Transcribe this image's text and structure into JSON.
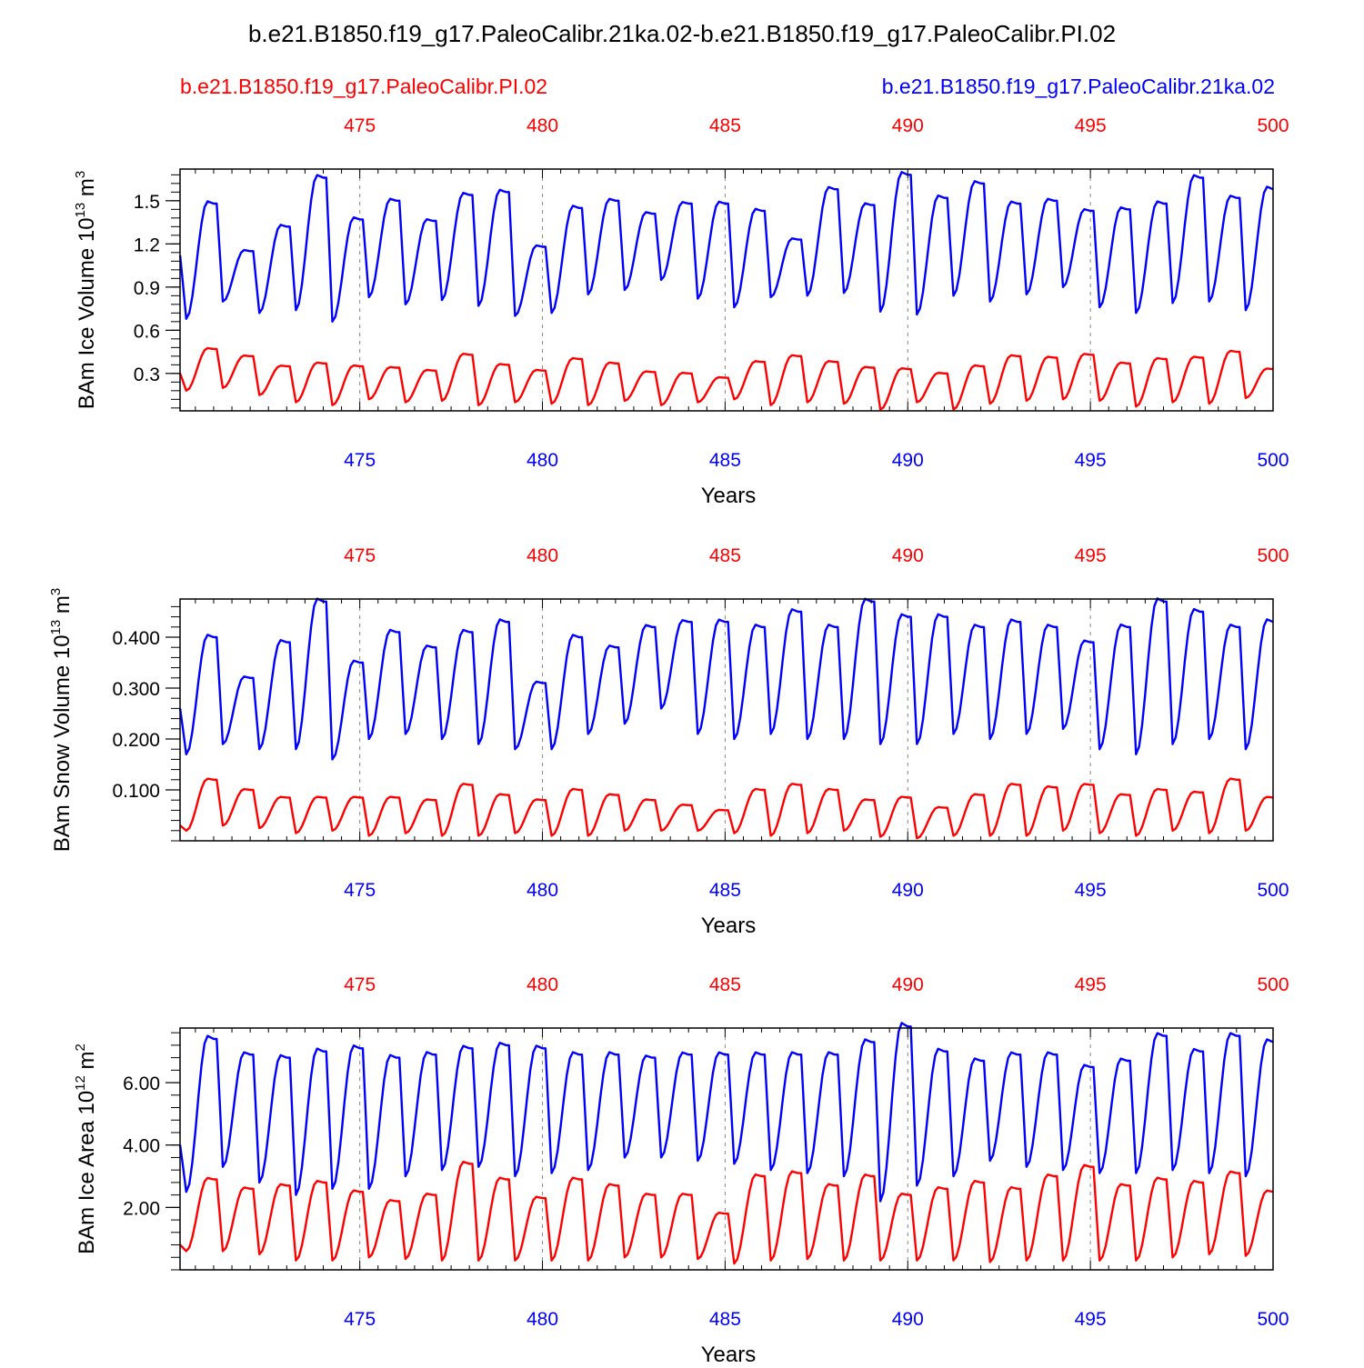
{
  "title": "b.e21.B1850.f19_g17.PaleoCalibr.21ka.02-b.e21.B1850.f19_g17.PaleoCalibr.PI.02",
  "legend": {
    "red_label": "b.e21.B1850.f19_g17.PaleoCalibr.PI.02",
    "blue_label": "b.e21.B1850.f19_g17.PaleoCalibr.21ka.02"
  },
  "colors": {
    "pi": "#ff0000",
    "lgm": "#0000ff",
    "axis": "#000000",
    "grid": "#888888"
  },
  "chart_data": [
    {
      "type": "line",
      "ylabel_main": "BAm Ice Volume 10",
      "ylabel_exp": "13",
      "ylabel_unit": " m",
      "ylabel_unit_exp": "3",
      "xlabel": "Years",
      "xlim": [
        470.08,
        500
      ],
      "ylim": [
        0.04,
        1.72
      ],
      "xticks": [
        475,
        480,
        485,
        490,
        495,
        500
      ],
      "xtick_labels": [
        "475",
        "480",
        "485",
        "490",
        "495",
        "500"
      ],
      "yticks": [
        0.3,
        0.6,
        0.9,
        1.2,
        1.5
      ],
      "ytick_labels": [
        "0.3",
        "0.6",
        "0.9",
        "1.2",
        "1.5"
      ],
      "yminor_step": 0.06,
      "grid": "dashed vertical at major x ticks",
      "series": [
        {
          "name": "b.e21.B1850.f19_g17.PaleoCalibr.21ka.02",
          "color": "#0000ff",
          "year_min": [
            1.12,
            1.48,
            1.15,
            1.32,
            1.66,
            1.37,
            1.5,
            1.36,
            1.54,
            1.56,
            1.18,
            1.45,
            1.5,
            1.41,
            1.48,
            1.48,
            1.43,
            1.23,
            1.58,
            1.47,
            1.68,
            1.52,
            1.62,
            1.48,
            1.5,
            1.43,
            1.44,
            1.48,
            1.66,
            1.52,
            1.58,
            1.35
          ],
          "year_max": [
            0.68,
            0.8,
            0.72,
            0.74,
            0.66,
            0.83,
            0.78,
            0.81,
            0.77,
            0.7,
            0.72,
            0.85,
            0.88,
            0.95,
            0.82,
            0.76,
            0.83,
            0.84,
            0.86,
            0.73,
            0.71,
            0.84,
            0.8,
            0.85,
            0.9,
            0.76,
            0.72,
            0.79,
            0.8,
            0.74,
            0.88,
            1.08
          ]
        },
        {
          "name": "b.e21.B1850.f19_g17.PaleoCalibr.PI.02",
          "color": "#ff0000",
          "year_min": [
            0.3,
            0.47,
            0.42,
            0.35,
            0.37,
            0.35,
            0.34,
            0.32,
            0.43,
            0.36,
            0.32,
            0.4,
            0.37,
            0.31,
            0.3,
            0.27,
            0.38,
            0.42,
            0.38,
            0.34,
            0.33,
            0.3,
            0.35,
            0.42,
            0.41,
            0.43,
            0.37,
            0.4,
            0.41,
            0.45,
            0.33,
            0.22
          ],
          "year_max": [
            0.18,
            0.2,
            0.15,
            0.1,
            0.08,
            0.12,
            0.1,
            0.11,
            0.08,
            0.1,
            0.09,
            0.08,
            0.11,
            0.08,
            0.1,
            0.12,
            0.08,
            0.1,
            0.09,
            0.05,
            0.1,
            0.05,
            0.09,
            0.11,
            0.12,
            0.11,
            0.07,
            0.1,
            0.09,
            0.13,
            0.13,
            0.22
          ]
        }
      ]
    },
    {
      "type": "line",
      "ylabel_main": "BAm Snow Volume 10",
      "ylabel_exp": "13",
      "ylabel_unit": " m",
      "ylabel_unit_exp": "3",
      "xlabel": "Years",
      "xlim": [
        470.08,
        500
      ],
      "ylim": [
        0.0,
        0.475
      ],
      "xticks": [
        475,
        480,
        485,
        490,
        495,
        500
      ],
      "xtick_labels": [
        "475",
        "480",
        "485",
        "490",
        "495",
        "500"
      ],
      "yticks": [
        0.1,
        0.2,
        0.3,
        0.4
      ],
      "ytick_labels": [
        "0.100",
        "0.200",
        "0.300",
        "0.400"
      ],
      "yminor_step": 0.02,
      "grid": "dashed vertical at major x ticks",
      "series": [
        {
          "name": "b.e21.B1850.f19_g17.PaleoCalibr.21ka.02",
          "color": "#0000ff",
          "year_min": [
            0.26,
            0.4,
            0.32,
            0.39,
            0.47,
            0.35,
            0.41,
            0.38,
            0.41,
            0.43,
            0.31,
            0.4,
            0.38,
            0.42,
            0.43,
            0.43,
            0.42,
            0.45,
            0.42,
            0.47,
            0.44,
            0.44,
            0.42,
            0.43,
            0.42,
            0.39,
            0.42,
            0.47,
            0.45,
            0.42,
            0.43,
            0.36
          ],
          "year_max": [
            0.17,
            0.19,
            0.18,
            0.18,
            0.16,
            0.2,
            0.21,
            0.2,
            0.19,
            0.18,
            0.18,
            0.21,
            0.23,
            0.26,
            0.21,
            0.2,
            0.21,
            0.2,
            0.2,
            0.19,
            0.19,
            0.21,
            0.2,
            0.21,
            0.22,
            0.18,
            0.17,
            0.19,
            0.2,
            0.18,
            0.21,
            0.24
          ]
        },
        {
          "name": "b.e21.B1850.f19_g17.PaleoCalibr.PI.02",
          "color": "#ff0000",
          "year_min": [
            0.03,
            0.12,
            0.1,
            0.085,
            0.085,
            0.085,
            0.085,
            0.08,
            0.11,
            0.09,
            0.08,
            0.1,
            0.09,
            0.08,
            0.07,
            0.06,
            0.1,
            0.11,
            0.1,
            0.08,
            0.085,
            0.065,
            0.09,
            0.11,
            0.105,
            0.11,
            0.09,
            0.1,
            0.095,
            0.12,
            0.085,
            0.03
          ],
          "year_max": [
            0.02,
            0.03,
            0.025,
            0.015,
            0.02,
            0.01,
            0.015,
            0.01,
            0.01,
            0.015,
            0.01,
            0.01,
            0.02,
            0.02,
            0.02,
            0.015,
            0.01,
            0.015,
            0.02,
            0.008,
            0.005,
            0.01,
            0.01,
            0.01,
            0.02,
            0.015,
            0.01,
            0.02,
            0.015,
            0.02,
            0.025,
            0.03
          ]
        }
      ]
    },
    {
      "type": "line",
      "ylabel_main": "BAm Ice Area 10",
      "ylabel_exp": "12",
      "ylabel_unit": " m",
      "ylabel_unit_exp": "2",
      "xlabel": "Years",
      "xlim": [
        470.08,
        500
      ],
      "ylim": [
        0.0,
        7.75
      ],
      "xticks": [
        475,
        480,
        485,
        490,
        495,
        500
      ],
      "xtick_labels": [
        "475",
        "480",
        "485",
        "490",
        "495",
        "500"
      ],
      "yticks": [
        2.0,
        4.0,
        6.0
      ],
      "ytick_labels": [
        "2.00",
        "4.00",
        "6.00"
      ],
      "yminor_step": 0.4,
      "grid": "dashed vertical at major x ticks",
      "series": [
        {
          "name": "b.e21.B1850.f19_g17.PaleoCalibr.21ka.02",
          "color": "#0000ff",
          "year_min": [
            4.0,
            7.4,
            6.9,
            6.8,
            7.0,
            7.1,
            6.8,
            6.9,
            7.1,
            7.2,
            7.1,
            6.9,
            6.9,
            6.8,
            6.9,
            6.9,
            6.9,
            6.9,
            6.9,
            7.3,
            7.8,
            7.0,
            6.7,
            6.9,
            6.9,
            6.5,
            6.7,
            7.5,
            7.0,
            7.5,
            7.3,
            6.9
          ],
          "year_max": [
            2.5,
            3.3,
            2.8,
            2.4,
            2.6,
            2.6,
            3.0,
            3.2,
            3.3,
            3.0,
            3.1,
            3.2,
            3.6,
            3.6,
            3.5,
            3.4,
            3.2,
            3.1,
            3.0,
            2.2,
            2.7,
            3.0,
            3.5,
            3.3,
            3.2,
            3.1,
            3.1,
            3.2,
            3.1,
            3.0,
            3.1,
            4.4
          ]
        },
        {
          "name": "b.e21.B1850.f19_g17.PaleoCalibr.PI.02",
          "color": "#ff0000",
          "year_min": [
            0.8,
            2.9,
            2.6,
            2.7,
            2.8,
            2.5,
            2.2,
            2.4,
            3.4,
            2.9,
            2.3,
            2.9,
            2.7,
            2.4,
            2.4,
            1.8,
            3.0,
            3.1,
            2.7,
            3.0,
            2.4,
            2.6,
            2.8,
            2.6,
            3.0,
            3.3,
            2.7,
            2.9,
            2.8,
            3.1,
            2.5,
            1.3
          ],
          "year_max": [
            0.6,
            0.6,
            0.5,
            0.3,
            0.3,
            0.4,
            0.35,
            0.3,
            0.3,
            0.3,
            0.3,
            0.3,
            0.4,
            0.4,
            0.35,
            0.2,
            0.3,
            0.35,
            0.3,
            0.3,
            0.3,
            0.3,
            0.25,
            0.3,
            0.3,
            0.3,
            0.3,
            0.4,
            0.5,
            0.45,
            0.6,
            1.3
          ]
        }
      ]
    }
  ]
}
